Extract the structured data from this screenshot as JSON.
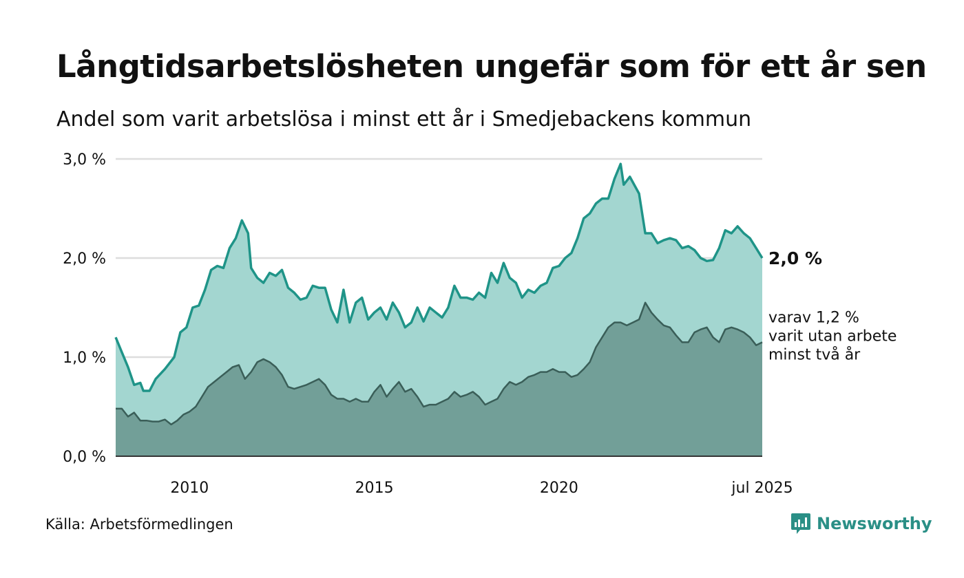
{
  "header": {
    "title": "Långtidsarbetslösheten ungefär som för ett år sen",
    "subtitle": "Andel som varit arbetslösa i minst ett år i Smedjebackens kommun"
  },
  "footer": {
    "source": "Källa: Arbetsförmedlingen",
    "logo_text": "Newsworthy"
  },
  "colors": {
    "series_total_line": "#1f9488",
    "series_total_fill": "#a3d6d0",
    "series_sub_line": "#3a5e58",
    "series_sub_fill": "#729f98",
    "grid": "#dddddd",
    "logo": "#2a8f86"
  },
  "chart_data": {
    "type": "area",
    "x_start": "2008-01",
    "x_end": "2025-07",
    "x_step": "month",
    "ylim": [
      0,
      3.0
    ],
    "y_ticks": [
      {
        "value": 0,
        "label": "0,0 %"
      },
      {
        "value": 1,
        "label": "1,0 %"
      },
      {
        "value": 2,
        "label": "2,0 %"
      },
      {
        "value": 3,
        "label": "3,0 %"
      }
    ],
    "x_ticks": [
      {
        "date": "2010-01",
        "label": "2010"
      },
      {
        "date": "2015-01",
        "label": "2015"
      },
      {
        "date": "2020-01",
        "label": "2020"
      },
      {
        "date": "2025-07",
        "label": "jul 2025"
      }
    ],
    "grid": true,
    "annotations": {
      "total_label": "2,0 %",
      "sub_label_lines": [
        "varav 1,2 %",
        "varit utan arbete",
        "minst två år"
      ]
    },
    "series": [
      {
        "key": "total",
        "keyframes": [
          [
            "2008-01",
            1.2
          ],
          [
            "2008-03",
            1.05
          ],
          [
            "2008-05",
            0.9
          ],
          [
            "2008-07",
            0.72
          ],
          [
            "2008-09",
            0.74
          ],
          [
            "2008-10",
            0.66
          ],
          [
            "2008-12",
            0.66
          ],
          [
            "2009-02",
            0.78
          ],
          [
            "2009-05",
            0.88
          ],
          [
            "2009-08",
            1.0
          ],
          [
            "2009-10",
            1.25
          ],
          [
            "2009-12",
            1.3
          ],
          [
            "2010-02",
            1.5
          ],
          [
            "2010-04",
            1.52
          ],
          [
            "2010-06",
            1.68
          ],
          [
            "2010-08",
            1.88
          ],
          [
            "2010-10",
            1.92
          ],
          [
            "2010-12",
            1.9
          ],
          [
            "2011-02",
            2.1
          ],
          [
            "2011-04",
            2.2
          ],
          [
            "2011-06",
            2.38
          ],
          [
            "2011-08",
            2.25
          ],
          [
            "2011-09",
            1.9
          ],
          [
            "2011-11",
            1.8
          ],
          [
            "2012-01",
            1.75
          ],
          [
            "2012-03",
            1.85
          ],
          [
            "2012-05",
            1.82
          ],
          [
            "2012-07",
            1.88
          ],
          [
            "2012-09",
            1.7
          ],
          [
            "2012-11",
            1.65
          ],
          [
            "2013-01",
            1.58
          ],
          [
            "2013-03",
            1.6
          ],
          [
            "2013-05",
            1.72
          ],
          [
            "2013-07",
            1.7
          ],
          [
            "2013-09",
            1.7
          ],
          [
            "2013-11",
            1.48
          ],
          [
            "2014-01",
            1.35
          ],
          [
            "2014-03",
            1.68
          ],
          [
            "2014-05",
            1.35
          ],
          [
            "2014-07",
            1.55
          ],
          [
            "2014-09",
            1.6
          ],
          [
            "2014-11",
            1.38
          ],
          [
            "2015-01",
            1.45
          ],
          [
            "2015-03",
            1.5
          ],
          [
            "2015-05",
            1.38
          ],
          [
            "2015-07",
            1.55
          ],
          [
            "2015-09",
            1.45
          ],
          [
            "2015-11",
            1.3
          ],
          [
            "2016-01",
            1.35
          ],
          [
            "2016-03",
            1.5
          ],
          [
            "2016-05",
            1.36
          ],
          [
            "2016-07",
            1.5
          ],
          [
            "2016-09",
            1.45
          ],
          [
            "2016-11",
            1.4
          ],
          [
            "2017-01",
            1.5
          ],
          [
            "2017-03",
            1.72
          ],
          [
            "2017-05",
            1.6
          ],
          [
            "2017-07",
            1.6
          ],
          [
            "2017-09",
            1.58
          ],
          [
            "2017-11",
            1.65
          ],
          [
            "2018-01",
            1.6
          ],
          [
            "2018-03",
            1.85
          ],
          [
            "2018-05",
            1.75
          ],
          [
            "2018-07",
            1.95
          ],
          [
            "2018-09",
            1.8
          ],
          [
            "2018-11",
            1.75
          ],
          [
            "2019-01",
            1.6
          ],
          [
            "2019-03",
            1.68
          ],
          [
            "2019-05",
            1.65
          ],
          [
            "2019-07",
            1.72
          ],
          [
            "2019-09",
            1.75
          ],
          [
            "2019-11",
            1.9
          ],
          [
            "2020-01",
            1.92
          ],
          [
            "2020-03",
            2.0
          ],
          [
            "2020-05",
            2.05
          ],
          [
            "2020-07",
            2.2
          ],
          [
            "2020-09",
            2.4
          ],
          [
            "2020-11",
            2.45
          ],
          [
            "2021-01",
            2.55
          ],
          [
            "2021-03",
            2.6
          ],
          [
            "2021-05",
            2.6
          ],
          [
            "2021-07",
            2.8
          ],
          [
            "2021-09",
            2.95
          ],
          [
            "2021-10",
            2.74
          ],
          [
            "2021-12",
            2.82
          ],
          [
            "2022-03",
            2.65
          ],
          [
            "2022-05",
            2.25
          ],
          [
            "2022-07",
            2.25
          ],
          [
            "2022-09",
            2.15
          ],
          [
            "2022-11",
            2.18
          ],
          [
            "2023-01",
            2.2
          ],
          [
            "2023-03",
            2.18
          ],
          [
            "2023-05",
            2.1
          ],
          [
            "2023-07",
            2.12
          ],
          [
            "2023-09",
            2.08
          ],
          [
            "2023-11",
            2.0
          ],
          [
            "2024-01",
            1.97
          ],
          [
            "2024-03",
            1.98
          ],
          [
            "2024-05",
            2.1
          ],
          [
            "2024-07",
            2.28
          ],
          [
            "2024-09",
            2.25
          ],
          [
            "2024-11",
            2.32
          ],
          [
            "2025-01",
            2.25
          ],
          [
            "2025-03",
            2.2
          ],
          [
            "2025-05",
            2.1
          ],
          [
            "2025-07",
            2.0
          ]
        ]
      },
      {
        "key": "sub",
        "keyframes": [
          [
            "2008-01",
            0.48
          ],
          [
            "2008-03",
            0.48
          ],
          [
            "2008-05",
            0.4
          ],
          [
            "2008-07",
            0.44
          ],
          [
            "2008-09",
            0.36
          ],
          [
            "2008-11",
            0.36
          ],
          [
            "2009-01",
            0.35
          ],
          [
            "2009-03",
            0.35
          ],
          [
            "2009-05",
            0.37
          ],
          [
            "2009-07",
            0.32
          ],
          [
            "2009-09",
            0.36
          ],
          [
            "2009-11",
            0.42
          ],
          [
            "2010-01",
            0.45
          ],
          [
            "2010-03",
            0.5
          ],
          [
            "2010-05",
            0.6
          ],
          [
            "2010-07",
            0.7
          ],
          [
            "2010-09",
            0.75
          ],
          [
            "2010-11",
            0.8
          ],
          [
            "2011-01",
            0.85
          ],
          [
            "2011-03",
            0.9
          ],
          [
            "2011-05",
            0.92
          ],
          [
            "2011-07",
            0.78
          ],
          [
            "2011-09",
            0.85
          ],
          [
            "2011-11",
            0.95
          ],
          [
            "2012-01",
            0.98
          ],
          [
            "2012-03",
            0.95
          ],
          [
            "2012-05",
            0.9
          ],
          [
            "2012-07",
            0.82
          ],
          [
            "2012-09",
            0.7
          ],
          [
            "2012-11",
            0.68
          ],
          [
            "2013-01",
            0.7
          ],
          [
            "2013-03",
            0.72
          ],
          [
            "2013-05",
            0.75
          ],
          [
            "2013-07",
            0.78
          ],
          [
            "2013-09",
            0.72
          ],
          [
            "2013-11",
            0.62
          ],
          [
            "2014-01",
            0.58
          ],
          [
            "2014-03",
            0.58
          ],
          [
            "2014-05",
            0.55
          ],
          [
            "2014-07",
            0.58
          ],
          [
            "2014-09",
            0.55
          ],
          [
            "2014-11",
            0.55
          ],
          [
            "2015-01",
            0.65
          ],
          [
            "2015-03",
            0.72
          ],
          [
            "2015-05",
            0.6
          ],
          [
            "2015-07",
            0.68
          ],
          [
            "2015-09",
            0.75
          ],
          [
            "2015-11",
            0.65
          ],
          [
            "2016-01",
            0.68
          ],
          [
            "2016-03",
            0.6
          ],
          [
            "2016-05",
            0.5
          ],
          [
            "2016-07",
            0.52
          ],
          [
            "2016-09",
            0.52
          ],
          [
            "2016-11",
            0.55
          ],
          [
            "2017-01",
            0.58
          ],
          [
            "2017-03",
            0.65
          ],
          [
            "2017-05",
            0.6
          ],
          [
            "2017-07",
            0.62
          ],
          [
            "2017-09",
            0.65
          ],
          [
            "2017-11",
            0.6
          ],
          [
            "2018-01",
            0.52
          ],
          [
            "2018-03",
            0.55
          ],
          [
            "2018-05",
            0.58
          ],
          [
            "2018-07",
            0.68
          ],
          [
            "2018-09",
            0.75
          ],
          [
            "2018-11",
            0.72
          ],
          [
            "2019-01",
            0.75
          ],
          [
            "2019-03",
            0.8
          ],
          [
            "2019-05",
            0.82
          ],
          [
            "2019-07",
            0.85
          ],
          [
            "2019-09",
            0.85
          ],
          [
            "2019-11",
            0.88
          ],
          [
            "2020-01",
            0.85
          ],
          [
            "2020-03",
            0.85
          ],
          [
            "2020-05",
            0.8
          ],
          [
            "2020-07",
            0.82
          ],
          [
            "2020-09",
            0.88
          ],
          [
            "2020-11",
            0.95
          ],
          [
            "2021-01",
            1.1
          ],
          [
            "2021-03",
            1.2
          ],
          [
            "2021-05",
            1.3
          ],
          [
            "2021-07",
            1.35
          ],
          [
            "2021-09",
            1.35
          ],
          [
            "2021-11",
            1.32
          ],
          [
            "2022-01",
            1.35
          ],
          [
            "2022-03",
            1.38
          ],
          [
            "2022-05",
            1.55
          ],
          [
            "2022-07",
            1.45
          ],
          [
            "2022-09",
            1.38
          ],
          [
            "2022-11",
            1.32
          ],
          [
            "2023-01",
            1.3
          ],
          [
            "2023-03",
            1.22
          ],
          [
            "2023-05",
            1.15
          ],
          [
            "2023-07",
            1.15
          ],
          [
            "2023-09",
            1.25
          ],
          [
            "2023-11",
            1.28
          ],
          [
            "2024-01",
            1.3
          ],
          [
            "2024-03",
            1.2
          ],
          [
            "2024-05",
            1.15
          ],
          [
            "2024-07",
            1.28
          ],
          [
            "2024-09",
            1.3
          ],
          [
            "2024-11",
            1.28
          ],
          [
            "2025-01",
            1.25
          ],
          [
            "2025-03",
            1.2
          ],
          [
            "2025-05",
            1.12
          ],
          [
            "2025-07",
            1.15
          ]
        ]
      }
    ]
  }
}
